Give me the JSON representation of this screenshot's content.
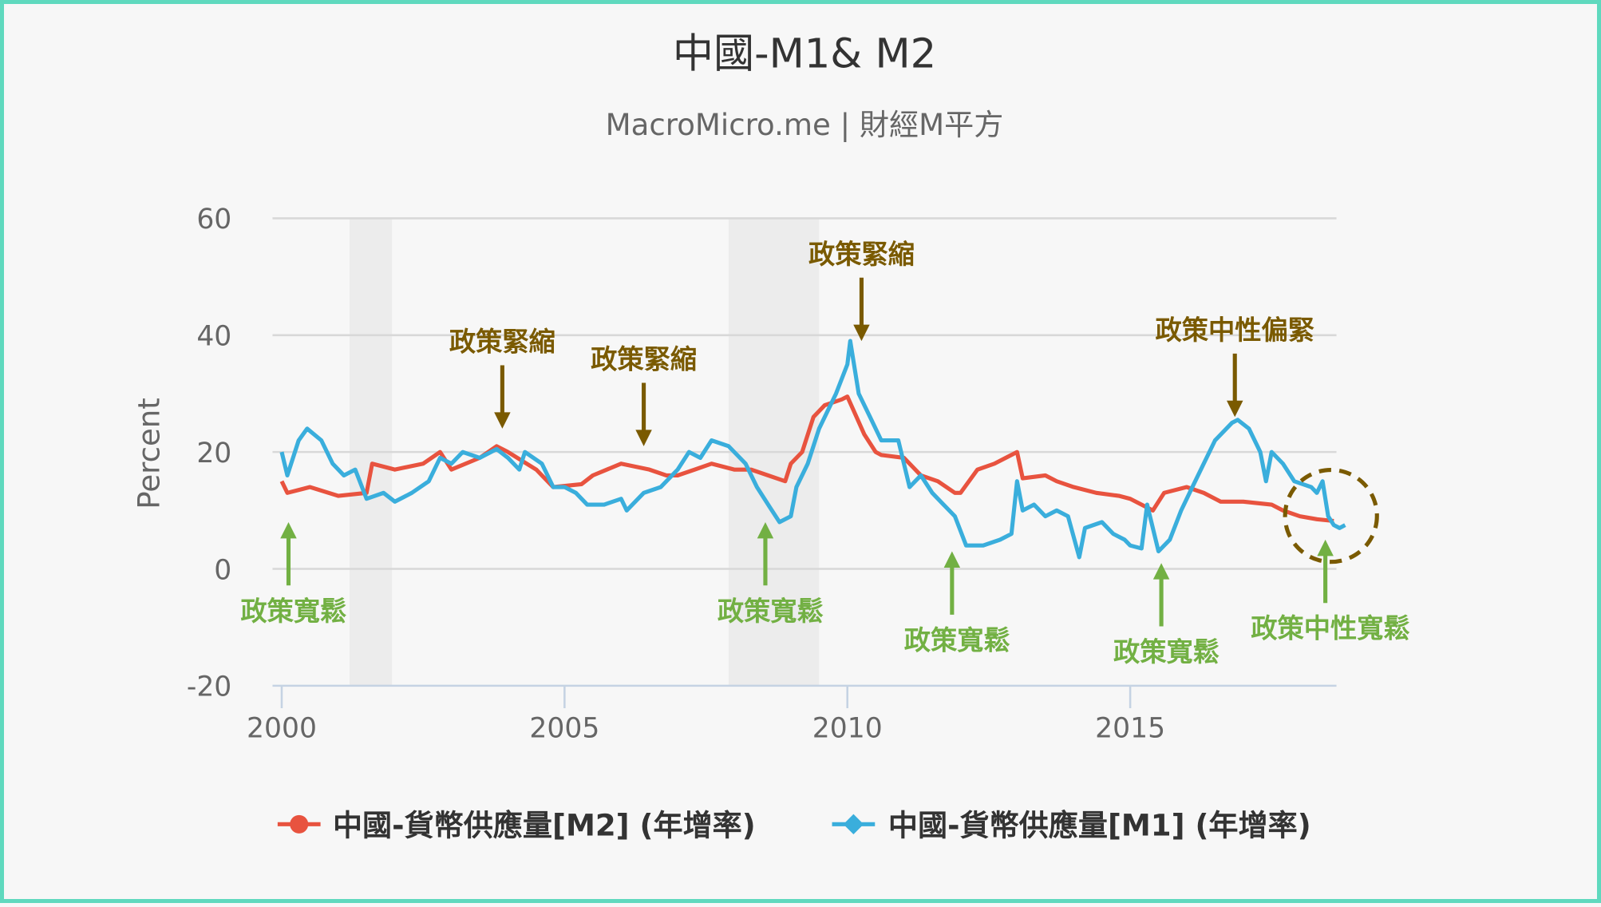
{
  "chart_data": {
    "type": "line",
    "title": "中國-M1& M2",
    "subtitle": "MacroMicro.me | 財經M平方",
    "ylabel": "Percent",
    "xlabel": "",
    "ylim": [
      -20,
      60
    ],
    "xlim": [
      1999.7,
      2019.0
    ],
    "yticks": [
      "60",
      "40",
      "20",
      "0",
      "-20"
    ],
    "ytick_values": [
      60,
      40,
      20,
      0,
      -20
    ],
    "xticks": [
      "2000",
      "2005",
      "2010",
      "2015"
    ],
    "xtick_values": [
      2000,
      2005,
      2010,
      2015
    ],
    "grid": true,
    "legend_position": "bottom",
    "recession_bands": [
      [
        2001.2,
        2001.95
      ],
      [
        2007.9,
        2009.5
      ]
    ],
    "series": [
      {
        "name": "中國-貨幣供應量[M2] (年增率)",
        "color": "#e8533f",
        "points": [
          [
            2000.0,
            15
          ],
          [
            2000.1,
            13
          ],
          [
            2000.5,
            14
          ],
          [
            2001.0,
            12.5
          ],
          [
            2001.5,
            13
          ],
          [
            2001.6,
            18
          ],
          [
            2002.0,
            17
          ],
          [
            2002.5,
            18
          ],
          [
            2002.8,
            20
          ],
          [
            2003.0,
            17
          ],
          [
            2003.5,
            19
          ],
          [
            2003.8,
            21
          ],
          [
            2004.0,
            20
          ],
          [
            2004.5,
            17
          ],
          [
            2004.8,
            14
          ],
          [
            2005.3,
            14.5
          ],
          [
            2005.5,
            16
          ],
          [
            2006.0,
            18
          ],
          [
            2006.5,
            17
          ],
          [
            2006.8,
            16
          ],
          [
            2007.0,
            16
          ],
          [
            2007.3,
            17
          ],
          [
            2007.6,
            18
          ],
          [
            2008.0,
            17
          ],
          [
            2008.3,
            17
          ],
          [
            2008.6,
            16
          ],
          [
            2008.9,
            15
          ],
          [
            2009.0,
            18
          ],
          [
            2009.2,
            20
          ],
          [
            2009.4,
            26
          ],
          [
            2009.6,
            28
          ],
          [
            2009.9,
            29
          ],
          [
            2010.0,
            29.5
          ],
          [
            2010.3,
            23
          ],
          [
            2010.5,
            20
          ],
          [
            2010.6,
            19.5
          ],
          [
            2011.0,
            19
          ],
          [
            2011.3,
            16
          ],
          [
            2011.6,
            15
          ],
          [
            2011.9,
            13
          ],
          [
            2012.0,
            13
          ],
          [
            2012.3,
            17
          ],
          [
            2012.6,
            18
          ],
          [
            2012.8,
            19
          ],
          [
            2013.0,
            20
          ],
          [
            2013.1,
            15.5
          ],
          [
            2013.5,
            16
          ],
          [
            2013.7,
            15
          ],
          [
            2014.0,
            14
          ],
          [
            2014.4,
            13
          ],
          [
            2014.8,
            12.5
          ],
          [
            2015.0,
            12
          ],
          [
            2015.4,
            10
          ],
          [
            2015.6,
            13
          ],
          [
            2016.0,
            14
          ],
          [
            2016.3,
            13
          ],
          [
            2016.6,
            11.5
          ],
          [
            2017.0,
            11.5
          ],
          [
            2017.5,
            11
          ],
          [
            2017.7,
            10
          ],
          [
            2018.0,
            9
          ],
          [
            2018.3,
            8.5
          ],
          [
            2018.6,
            8.2
          ]
        ]
      },
      {
        "name": "中國-貨幣供應量[M1] (年增率)",
        "color": "#3aaedc",
        "points": [
          [
            2000.0,
            20
          ],
          [
            2000.1,
            16
          ],
          [
            2000.3,
            22
          ],
          [
            2000.45,
            24
          ],
          [
            2000.7,
            22
          ],
          [
            2000.9,
            18
          ],
          [
            2001.1,
            16
          ],
          [
            2001.3,
            17
          ],
          [
            2001.5,
            12
          ],
          [
            2001.8,
            13
          ],
          [
            2002.0,
            11.5
          ],
          [
            2002.3,
            13
          ],
          [
            2002.6,
            15
          ],
          [
            2002.8,
            19
          ],
          [
            2003.0,
            18
          ],
          [
            2003.2,
            20
          ],
          [
            2003.5,
            19
          ],
          [
            2003.8,
            20.5
          ],
          [
            2004.0,
            19
          ],
          [
            2004.2,
            17
          ],
          [
            2004.3,
            20
          ],
          [
            2004.6,
            18
          ],
          [
            2004.8,
            14
          ],
          [
            2005.0,
            14
          ],
          [
            2005.2,
            13
          ],
          [
            2005.4,
            11
          ],
          [
            2005.7,
            11
          ],
          [
            2006.0,
            12
          ],
          [
            2006.1,
            10
          ],
          [
            2006.4,
            13
          ],
          [
            2006.7,
            14
          ],
          [
            2007.0,
            17
          ],
          [
            2007.2,
            20
          ],
          [
            2007.4,
            19
          ],
          [
            2007.6,
            22
          ],
          [
            2007.9,
            21
          ],
          [
            2008.2,
            18
          ],
          [
            2008.4,
            14
          ],
          [
            2008.6,
            11
          ],
          [
            2008.8,
            8
          ],
          [
            2009.0,
            9
          ],
          [
            2009.1,
            14
          ],
          [
            2009.3,
            18
          ],
          [
            2009.5,
            24
          ],
          [
            2009.8,
            30
          ],
          [
            2010.0,
            35
          ],
          [
            2010.05,
            39
          ],
          [
            2010.2,
            30
          ],
          [
            2010.4,
            26
          ],
          [
            2010.6,
            22
          ],
          [
            2010.9,
            22
          ],
          [
            2011.0,
            18
          ],
          [
            2011.1,
            14
          ],
          [
            2011.3,
            16
          ],
          [
            2011.5,
            13
          ],
          [
            2011.7,
            11
          ],
          [
            2011.9,
            9
          ],
          [
            2012.1,
            4
          ],
          [
            2012.4,
            4
          ],
          [
            2012.7,
            5
          ],
          [
            2012.9,
            6
          ],
          [
            2013.0,
            15
          ],
          [
            2013.1,
            10
          ],
          [
            2013.3,
            11
          ],
          [
            2013.5,
            9
          ],
          [
            2013.7,
            10
          ],
          [
            2013.9,
            9
          ],
          [
            2014.1,
            2
          ],
          [
            2014.2,
            7
          ],
          [
            2014.5,
            8
          ],
          [
            2014.7,
            6
          ],
          [
            2014.9,
            5
          ],
          [
            2015.0,
            4
          ],
          [
            2015.2,
            3.5
          ],
          [
            2015.3,
            11
          ],
          [
            2015.5,
            3
          ],
          [
            2015.7,
            5
          ],
          [
            2015.9,
            10
          ],
          [
            2016.1,
            14
          ],
          [
            2016.3,
            18
          ],
          [
            2016.5,
            22
          ],
          [
            2016.8,
            25
          ],
          [
            2016.9,
            25.5
          ],
          [
            2017.1,
            24
          ],
          [
            2017.3,
            20
          ],
          [
            2017.4,
            15
          ],
          [
            2017.5,
            20
          ],
          [
            2017.7,
            18
          ],
          [
            2017.9,
            15
          ],
          [
            2018.2,
            14
          ],
          [
            2018.3,
            13
          ],
          [
            2018.4,
            15
          ],
          [
            2018.5,
            9
          ],
          [
            2018.6,
            7.5
          ],
          [
            2018.7,
            7
          ],
          [
            2018.8,
            7.5
          ]
        ]
      }
    ],
    "annotations": [
      {
        "text": "政策緊縮",
        "kind": "tightening",
        "year": 2003.9,
        "value": 24
      },
      {
        "text": "政策緊縮",
        "kind": "tightening",
        "year": 2006.4,
        "value": 21
      },
      {
        "text": "政策緊縮",
        "kind": "tightening",
        "year": 2010.25,
        "value": 39
      },
      {
        "text": "政策中性偏緊",
        "kind": "tightening",
        "year": 2016.85,
        "value": 26
      },
      {
        "text": "政策寬鬆",
        "kind": "easing",
        "year": 2000.12,
        "value": 8
      },
      {
        "text": "政策寬鬆",
        "kind": "easing",
        "year": 2008.55,
        "value": 8
      },
      {
        "text": "政策寬鬆",
        "kind": "easing",
        "year": 2011.85,
        "value": 3
      },
      {
        "text": "政策寬鬆",
        "kind": "easing",
        "year": 2015.55,
        "value": 1
      },
      {
        "text": "政策中性寬鬆",
        "kind": "easing",
        "year": 2018.45,
        "value": 5
      }
    ],
    "highlight_circle": {
      "year": 2018.55,
      "value": 7.5
    },
    "colors": {
      "tightening": "#7a5a00",
      "easing": "#72b043",
      "grid": "#d8d8d8",
      "band": "#ececec"
    }
  }
}
